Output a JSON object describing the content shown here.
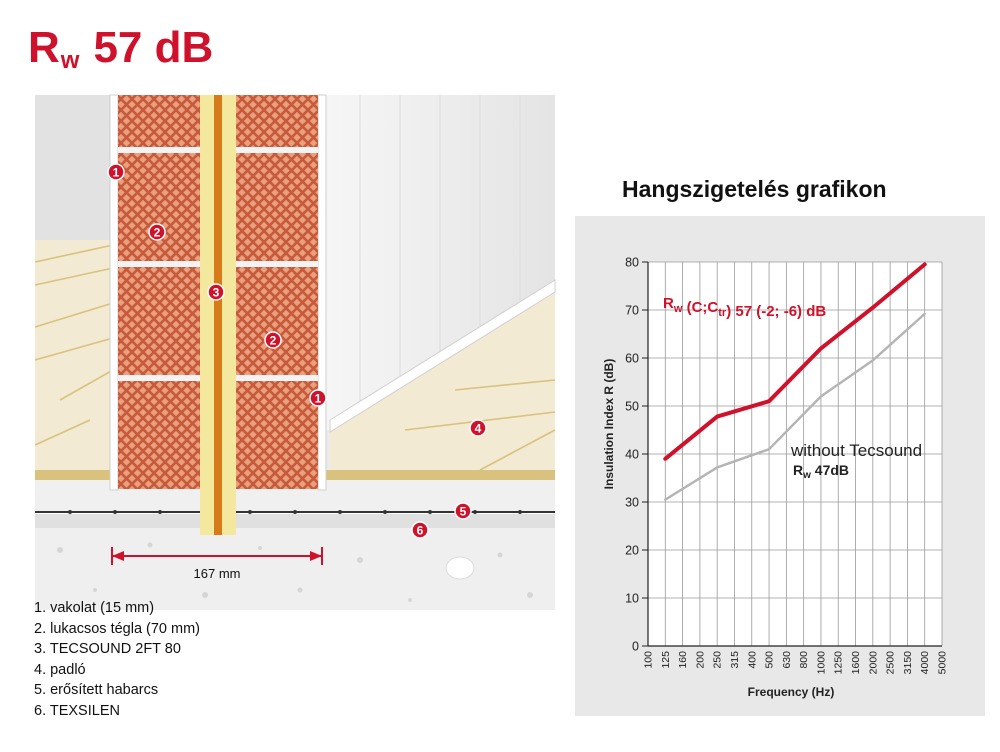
{
  "heading": {
    "main": "R",
    "sub": "w",
    "value": "57 dB"
  },
  "dimension": {
    "label": "167 mm"
  },
  "callouts": [
    "1",
    "2",
    "3",
    "2",
    "1",
    "4",
    "5",
    "6"
  ],
  "legend": [
    "1. vakolat (15 mm)",
    "2. lukacsos tégla (70 mm)",
    "3. TECSOUND 2FT 80",
    "4. padló",
    "5. erősített habarcs",
    "6. TEXSILEN"
  ],
  "graph_title": "Hangszigetelés grafikon",
  "colors": {
    "accent": "#d0112b",
    "gray_line": "#b4b4b4",
    "brick": "#e8a07d",
    "insulation": "#f4e79e",
    "core": "#d67a1a"
  },
  "chart_data": {
    "type": "line",
    "categories": [
      "100",
      "125",
      "160",
      "200",
      "250",
      "315",
      "400",
      "500",
      "630",
      "800",
      "1000",
      "1250",
      "1600",
      "2000",
      "2500",
      "3150",
      "4000",
      "5000"
    ],
    "xlabel": "Frequency (Hz)",
    "ylabel": "Insulation Index R (dB)",
    "ylim": [
      0,
      80
    ],
    "yticks": [
      0,
      10,
      20,
      30,
      40,
      50,
      60,
      70,
      80
    ],
    "grid": true,
    "series": [
      {
        "name_main": "R",
        "name_sub": "w",
        "name_rest": " (C;C",
        "name_sub2": "tr",
        "name_end": ") 57 (-2; -6) dB",
        "color": "#d0112b",
        "x": [
          "125",
          "250",
          "500",
          "1000",
          "2000",
          "4000"
        ],
        "values": [
          39,
          47.8,
          51,
          62,
          70.5,
          79.5
        ]
      },
      {
        "name": "without Tecsound",
        "name_main": "R",
        "name_sub": "w",
        "name_rest": " 47dB",
        "color": "#b4b4b4",
        "x": [
          "125",
          "250",
          "500",
          "1000",
          "2000",
          "4000"
        ],
        "values": [
          30.5,
          37.2,
          41,
          52,
          59.5,
          69.2
        ]
      }
    ]
  }
}
